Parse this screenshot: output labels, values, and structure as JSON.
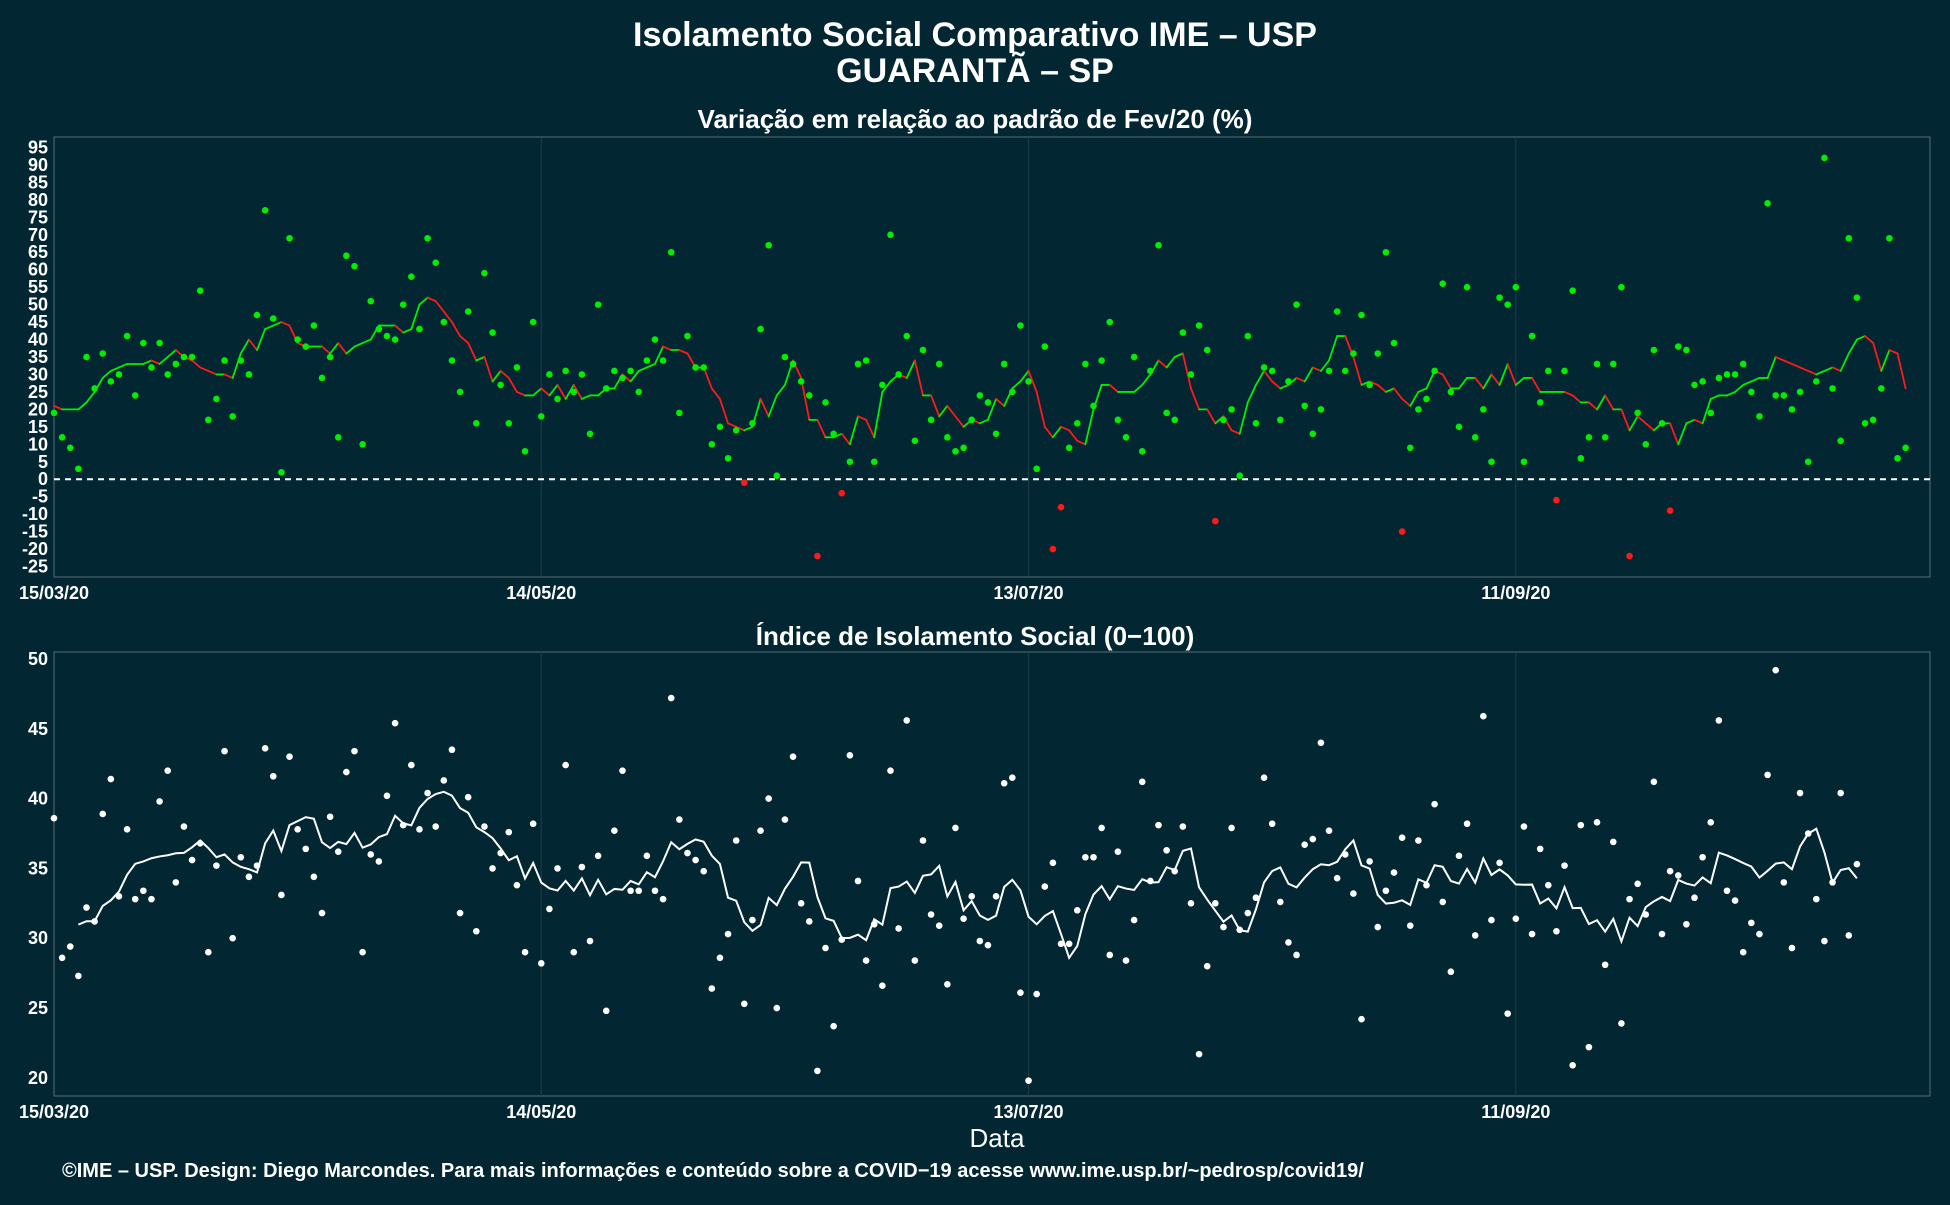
{
  "chart_data": [
    {
      "type": "scatter+line",
      "title_line1": "Isolamento Social Comparativo IME – USP",
      "title_line2": "GUARANTÃ – SP",
      "panel_title": "Variação em relação ao padrão de Fev/20 (%)",
      "x_tick_labels": [
        "15/03/20",
        "14/05/20",
        "13/07/20",
        "11/09/20"
      ],
      "x_tick_dates": [
        "2020-03-15",
        "2020-05-14",
        "2020-07-13",
        "2020-09-11"
      ],
      "x_range": [
        "2020-03-15",
        "2020-11-01"
      ],
      "y_ticks": [
        95,
        90,
        85,
        80,
        75,
        70,
        65,
        60,
        55,
        50,
        45,
        40,
        35,
        30,
        25,
        20,
        15,
        10,
        5,
        0,
        -5,
        -10,
        -15,
        -20,
        -25
      ],
      "ylim": [
        -28,
        98
      ],
      "reference_line": 0,
      "grid": true,
      "colors": {
        "positive": "#00ee00",
        "negative": "#ff1a1a",
        "reference": "#ffffff"
      },
      "points": [
        19,
        12,
        9,
        3,
        35,
        26,
        36,
        28,
        30,
        41,
        24,
        39,
        32,
        39,
        30,
        33,
        35,
        35,
        54,
        17,
        23,
        34,
        18,
        34,
        30,
        47,
        77,
        46,
        2,
        69,
        40,
        38,
        44,
        29,
        35,
        12,
        64,
        61,
        10,
        51,
        43,
        41,
        40,
        50,
        58,
        43,
        69,
        62,
        45,
        34,
        25,
        48,
        16,
        59,
        42,
        27,
        16,
        32,
        8,
        45,
        18,
        30,
        23,
        31,
        25,
        30,
        13,
        50,
        26,
        31,
        29,
        31,
        25,
        34,
        40,
        34,
        65,
        19,
        41,
        32,
        32,
        10,
        15,
        6,
        14,
        -1,
        16,
        43,
        67,
        1,
        35,
        33,
        28,
        24,
        -22,
        22,
        13,
        -4,
        5,
        33,
        34,
        5,
        27,
        70,
        30,
        41,
        11,
        37,
        17,
        33,
        12,
        8,
        9,
        17,
        24,
        22,
        13,
        33,
        25,
        44,
        28,
        3,
        38,
        -20,
        -8,
        9,
        16,
        33,
        21,
        34,
        45,
        17,
        12,
        35,
        8,
        31,
        67,
        19,
        17,
        42,
        30,
        44,
        37,
        -12,
        17,
        20,
        1,
        41,
        16,
        32,
        31,
        17,
        28,
        50,
        21,
        13,
        20,
        31,
        48,
        31,
        36,
        47,
        27,
        36,
        65,
        39,
        -15,
        9,
        20,
        23,
        31,
        56,
        25,
        15,
        55,
        12,
        20,
        5,
        52,
        50,
        55,
        5,
        41,
        22,
        31,
        -6,
        31,
        54,
        6,
        12,
        33,
        12,
        33,
        55,
        -22,
        19,
        10,
        37,
        16,
        -9,
        38,
        37,
        27,
        28,
        19,
        29,
        30,
        30,
        33,
        25,
        18,
        79,
        24,
        24,
        20,
        25,
        5,
        28,
        92,
        26,
        11,
        69,
        52,
        16,
        17,
        26,
        69,
        6,
        9
      ],
      "rolling_mean": [
        21,
        20,
        20,
        20,
        22,
        25,
        29,
        31,
        32,
        33,
        33,
        33,
        34,
        33,
        35,
        37,
        35,
        34,
        32,
        31,
        30,
        30,
        29,
        36,
        40,
        37,
        43,
        44,
        45,
        44,
        39,
        38,
        38,
        38,
        36,
        39,
        36,
        38,
        39,
        40,
        44,
        44,
        44,
        42,
        43,
        50,
        52,
        51,
        48,
        45,
        41,
        39,
        34,
        35,
        28,
        31,
        29,
        25,
        24,
        24,
        26,
        24,
        27,
        23,
        27,
        23,
        24,
        24,
        26,
        26,
        30,
        28,
        31,
        32,
        33,
        38,
        37,
        37,
        36,
        32,
        32,
        26,
        23,
        16,
        15,
        14,
        15,
        23,
        18,
        24,
        27,
        34,
        29,
        17,
        17,
        12,
        12,
        13,
        10,
        18,
        17,
        12,
        25,
        28,
        30,
        29,
        34,
        24,
        24,
        18,
        21,
        18,
        15,
        17,
        16,
        17,
        23,
        21,
        26,
        28,
        31,
        25,
        15,
        12,
        15,
        14,
        11,
        10,
        20,
        27,
        27,
        25,
        25,
        25,
        27,
        30,
        34,
        32,
        35,
        36,
        26,
        20,
        20,
        16,
        18,
        14,
        13,
        22,
        27,
        31,
        28,
        26,
        27,
        29,
        28,
        32,
        31,
        34,
        41,
        41,
        35,
        27,
        28,
        27,
        25,
        26,
        23,
        21,
        25,
        26,
        31,
        30,
        26,
        26,
        29,
        29,
        26,
        30,
        27,
        33,
        27,
        29,
        29,
        25,
        25,
        25,
        25,
        24,
        22,
        22,
        20,
        24,
        20,
        20,
        14,
        18,
        16,
        14,
        16,
        16,
        10,
        16,
        17,
        16,
        23,
        24,
        24,
        25,
        27,
        28,
        29,
        29,
        35,
        34,
        33,
        32,
        31,
        30,
        31,
        32,
        31,
        36,
        40,
        41,
        39,
        31,
        37,
        36,
        26
      ]
    },
    {
      "type": "scatter+line",
      "panel_title": "Índice de Isolamento Social (0−100)",
      "x_tick_labels": [
        "15/03/20",
        "14/05/20",
        "13/07/20",
        "11/09/20"
      ],
      "x_tick_dates": [
        "2020-03-15",
        "2020-05-14",
        "2020-07-13",
        "2020-09-11"
      ],
      "x_range": [
        "2020-03-15",
        "2020-11-01"
      ],
      "xlabel": "Data",
      "y_ticks": [
        50,
        45,
        40,
        35,
        30,
        25,
        20
      ],
      "ylim": [
        18.7,
        50.5
      ],
      "grid": true,
      "colors": {
        "points": "#ffffff",
        "line": "#ffffff"
      },
      "points": [
        38.6,
        28.6,
        29.4,
        27.3,
        32.2,
        31.2,
        38.9,
        41.4,
        33.0,
        37.8,
        32.8,
        33.4,
        32.8,
        39.8,
        42.0,
        34.0,
        38.0,
        35.6,
        36.8,
        29.0,
        35.2,
        43.4,
        30.0,
        35.8,
        34.4,
        35.2,
        43.6,
        41.6,
        33.1,
        43.0,
        37.8,
        36.4,
        34.4,
        31.8,
        38.7,
        36.2,
        41.9,
        43.4,
        29.0,
        36.0,
        35.5,
        40.2,
        45.4,
        38.1,
        42.4,
        37.8,
        40.4,
        38.0,
        41.3,
        43.5,
        31.8,
        40.1,
        30.5,
        38.0,
        35.0,
        36.1,
        37.6,
        33.8,
        29.0,
        38.2,
        28.2,
        32.1,
        35.0,
        42.4,
        29.0,
        35.1,
        29.8,
        35.9,
        24.8,
        37.7,
        42.0,
        33.4,
        33.4,
        35.9,
        33.4,
        32.8,
        47.2,
        38.5,
        36.1,
        35.6,
        34.8,
        26.4,
        28.6,
        30.3,
        37.0,
        25.3,
        31.3,
        37.7,
        40.0,
        25.0,
        38.5,
        43.0,
        32.5,
        31.2,
        20.5,
        29.3,
        23.7,
        29.9,
        43.1,
        34.1,
        28.4,
        31.0,
        26.6,
        42.0,
        30.7,
        45.6,
        28.4,
        37.0,
        31.7,
        30.9,
        26.7,
        37.9,
        31.4,
        33.0,
        29.8,
        29.5,
        33.0,
        41.1,
        41.5,
        26.1,
        19.8,
        26.0,
        33.7,
        35.4,
        29.6,
        29.6,
        32.0,
        35.8,
        35.8,
        37.9,
        28.8,
        36.2,
        28.4,
        31.3,
        41.2,
        34.1,
        38.1,
        36.3,
        34.8,
        38.0,
        32.5,
        21.7,
        28.0,
        32.5,
        30.8,
        37.9,
        30.6,
        31.8,
        32.9,
        41.5,
        38.2,
        32.6,
        29.7,
        28.8,
        36.7,
        37.1,
        44.0,
        37.7,
        34.3,
        36.0,
        33.2,
        24.2,
        35.5,
        30.8,
        33.4,
        34.7,
        37.2,
        30.9,
        37.0,
        33.8,
        39.6,
        32.6,
        27.6,
        35.9,
        38.2,
        30.2,
        45.9,
        31.3,
        35.4,
        24.6,
        31.4,
        38.0,
        30.3,
        36.4,
        33.8,
        30.5,
        35.2,
        20.9,
        38.1,
        22.2,
        38.3,
        28.1,
        36.9,
        23.9,
        32.8,
        33.9,
        31.7,
        41.2,
        30.3,
        34.8,
        34.5,
        31.0,
        32.9,
        35.8,
        38.3,
        45.6,
        33.4,
        32.7,
        29.0,
        31.1,
        30.3,
        41.7,
        49.2,
        34.0,
        29.3,
        40.4,
        37.5,
        32.8,
        29.8,
        34.0,
        40.4,
        30.2,
        35.3
      ]
    }
  ],
  "credit": "©IME – USP. Design: Diego Marcondes. Para mais informações e conteúdo sobre a COVID−19 acesse www.ime.usp.br/~pedrosp/covid19/"
}
